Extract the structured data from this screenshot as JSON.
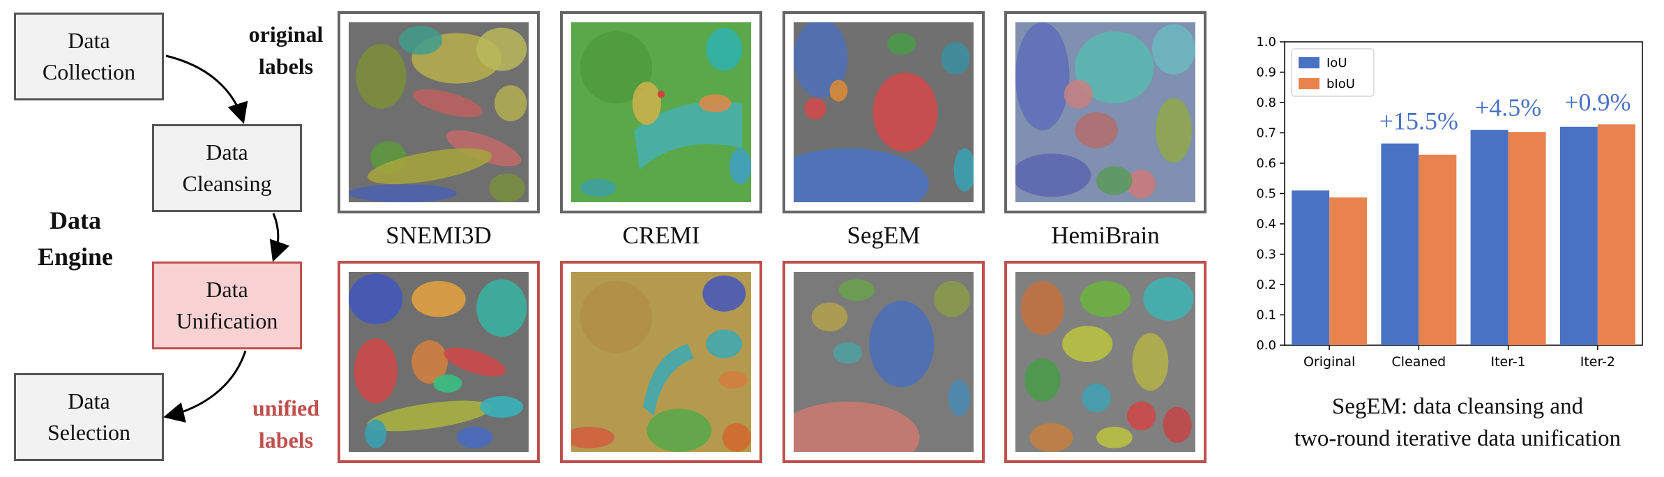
{
  "engine": {
    "title_line1": "Data",
    "title_line2": "Engine",
    "steps": [
      {
        "line1": "Data",
        "line2": "Collection"
      },
      {
        "line1": "Data",
        "line2": "Cleansing"
      },
      {
        "line1": "Data",
        "line2": "Unification"
      },
      {
        "line1": "Data",
        "line2": "Selection"
      }
    ]
  },
  "labels": {
    "original_line1": "original",
    "original_line2": "labels",
    "unified_line1": "unified",
    "unified_line2": "labels"
  },
  "datasets": [
    "SNEMI3D",
    "CREMI",
    "SegEM",
    "HemiBrain"
  ],
  "colors": {
    "box_border": "#555555",
    "unify_border": "#c0504d",
    "unify_fill": "#f8d2d2",
    "iou": "#4a72c4",
    "biou": "#e8834e",
    "gain_text": "#4a72c4"
  },
  "caption": {
    "line1": "SegEM: data cleansing and",
    "line2": "two-round iterative data unification"
  },
  "chart_data": {
    "type": "bar",
    "categories": [
      "Original",
      "Cleaned",
      "Iter-1",
      "Iter-2"
    ],
    "series": [
      {
        "name": "IoU",
        "values": [
          0.51,
          0.665,
          0.71,
          0.72
        ]
      },
      {
        "name": "bIoU",
        "values": [
          0.487,
          0.628,
          0.703,
          0.728
        ]
      }
    ],
    "ylim": [
      0.0,
      1.0
    ],
    "yticks": [
      "0.0",
      "0.1",
      "0.2",
      "0.3",
      "0.4",
      "0.5",
      "0.6",
      "0.7",
      "0.8",
      "0.9",
      "1.0"
    ],
    "annotations": [
      "+15.5%",
      "+4.5%",
      "+0.9%"
    ],
    "legend_position": "top-left",
    "grid": false
  }
}
